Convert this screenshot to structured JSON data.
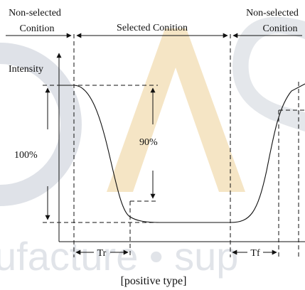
{
  "watermark": {
    "tagline": "ufacture • sup",
    "colors": {
      "letters": "#c9cfd8",
      "accent": "#f1dcb2",
      "dot": "#c9cfd8"
    }
  },
  "regions": {
    "left": {
      "line1": "Non-selected",
      "line2": "Conition"
    },
    "center": "Selected Conition",
    "right": {
      "line1": "Non-selected",
      "line2": "Conition"
    }
  },
  "y_axis_label": "Intensity",
  "amplitude_label": "100%",
  "threshold_label": "90%",
  "rise_label": "Tr",
  "fall_label": "Tf",
  "caption": "[positive type]",
  "colors": {
    "ink": "#111111",
    "background": "#ffffff"
  }
}
